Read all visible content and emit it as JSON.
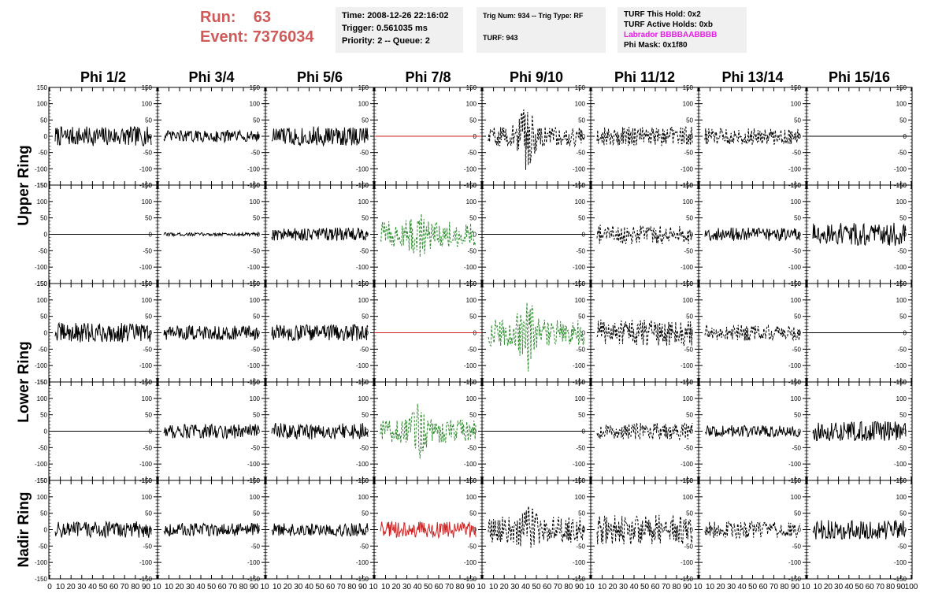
{
  "run_info": {
    "run_label": "Run:",
    "run_value": "63",
    "event_label": "Event:",
    "event_value": "7376034"
  },
  "info_box_1": {
    "time": "Time: 2008-12-26 22:16:02",
    "trigger": "Trigger: 0.561035 ms",
    "priority": "Priority: 2 -- Queue: 2"
  },
  "info_box_2": {
    "trig": "Trig Num: 934 -- Trig Type: RF",
    "turf": "TURF: 943"
  },
  "info_box_3": {
    "this_hold": "TURF This Hold: 0x2",
    "active_holds": "TURF Active Holds: 0xb",
    "labrador": "Labrador BBBBAABBBB",
    "phi_mask": "Phi Mask: 0x1f80"
  },
  "colors": {
    "run_text": "#cf5a5a",
    "labrador_text": "#e61ee6",
    "trace_black": "#000000",
    "trace_green": "#2e8b2e",
    "trace_red": "#cc2222",
    "info_box_bg": "#f0f0f0"
  },
  "chart_data": {
    "type": "line",
    "columns": [
      "Phi 1/2",
      "Phi 3/4",
      "Phi 5/6",
      "Phi 7/8",
      "Phi 9/10",
      "Phi 11/12",
      "Phi 13/14",
      "Phi 15/16"
    ],
    "ring_labels": [
      "Upper Ring",
      "Lower Ring",
      "Nadir Ring"
    ],
    "rows_per_ring": [
      2,
      2,
      1
    ],
    "xlim": [
      0,
      100
    ],
    "ylim": [
      -150,
      150
    ],
    "y_ticks": [
      -150,
      -100,
      -50,
      0,
      50,
      100,
      150
    ],
    "x_tick_labels": [
      "0",
      "10",
      "20",
      "30",
      "40",
      "50",
      "60",
      "70",
      "80",
      "90",
      "100"
    ],
    "panels": [
      {
        "row": 0,
        "col": 0,
        "style": "solid",
        "color": "black",
        "amp": 30,
        "burst": 0
      },
      {
        "row": 0,
        "col": 1,
        "style": "solid",
        "color": "black",
        "amp": 18,
        "burst": 0
      },
      {
        "row": 0,
        "col": 2,
        "style": "solid",
        "color": "black",
        "amp": 30,
        "burst": 0
      },
      {
        "row": 0,
        "col": 3,
        "style": "flat",
        "color": "red",
        "amp": 0,
        "burst": 0
      },
      {
        "row": 0,
        "col": 4,
        "style": "dashed",
        "color": "black",
        "amp": 30,
        "burst": 120
      },
      {
        "row": 0,
        "col": 5,
        "style": "dashed",
        "color": "black",
        "amp": 30,
        "burst": 0
      },
      {
        "row": 0,
        "col": 6,
        "style": "dashed",
        "color": "black",
        "amp": 25,
        "burst": 0
      },
      {
        "row": 0,
        "col": 7,
        "style": "flat",
        "color": "black",
        "amp": 0,
        "burst": 0
      },
      {
        "row": 1,
        "col": 0,
        "style": "flat",
        "color": "black",
        "amp": 0,
        "burst": 0
      },
      {
        "row": 1,
        "col": 1,
        "style": "solid",
        "color": "black",
        "amp": 5,
        "burst": 0
      },
      {
        "row": 1,
        "col": 2,
        "style": "solid",
        "color": "black",
        "amp": 20,
        "burst": 0
      },
      {
        "row": 1,
        "col": 3,
        "style": "dashed",
        "color": "green",
        "amp": 40,
        "burst": 85
      },
      {
        "row": 1,
        "col": 4,
        "style": "flat",
        "color": "black",
        "amp": 0,
        "burst": 0
      },
      {
        "row": 1,
        "col": 5,
        "style": "dashed",
        "color": "black",
        "amp": 30,
        "burst": 0
      },
      {
        "row": 1,
        "col": 6,
        "style": "solid",
        "color": "black",
        "amp": 20,
        "burst": 0
      },
      {
        "row": 1,
        "col": 7,
        "style": "solid",
        "color": "black",
        "amp": 35,
        "burst": 0
      },
      {
        "row": 2,
        "col": 0,
        "style": "solid",
        "color": "black",
        "amp": 30,
        "burst": 0
      },
      {
        "row": 2,
        "col": 1,
        "style": "solid",
        "color": "black",
        "amp": 22,
        "burst": 0
      },
      {
        "row": 2,
        "col": 2,
        "style": "solid",
        "color": "black",
        "amp": 25,
        "burst": 0
      },
      {
        "row": 2,
        "col": 3,
        "style": "flat",
        "color": "red",
        "amp": 0,
        "burst": 0
      },
      {
        "row": 2,
        "col": 4,
        "style": "dashed",
        "color": "green",
        "amp": 40,
        "burst": 130
      },
      {
        "row": 2,
        "col": 5,
        "style": "dashed",
        "color": "black",
        "amp": 40,
        "burst": 0
      },
      {
        "row": 2,
        "col": 6,
        "style": "dashed",
        "color": "black",
        "amp": 25,
        "burst": 0
      },
      {
        "row": 2,
        "col": 7,
        "style": "flat",
        "color": "black",
        "amp": 0,
        "burst": 0
      },
      {
        "row": 3,
        "col": 0,
        "style": "flat",
        "color": "black",
        "amp": 0,
        "burst": 0
      },
      {
        "row": 3,
        "col": 1,
        "style": "solid",
        "color": "black",
        "amp": 22,
        "burst": 0
      },
      {
        "row": 3,
        "col": 2,
        "style": "solid",
        "color": "black",
        "amp": 25,
        "burst": 0
      },
      {
        "row": 3,
        "col": 3,
        "style": "dashed",
        "color": "green",
        "amp": 35,
        "burst": 85
      },
      {
        "row": 3,
        "col": 4,
        "style": "flat",
        "color": "black",
        "amp": 0,
        "burst": 0
      },
      {
        "row": 3,
        "col": 5,
        "style": "dashed",
        "color": "black",
        "amp": 25,
        "burst": 0
      },
      {
        "row": 3,
        "col": 6,
        "style": "solid",
        "color": "black",
        "amp": 18,
        "burst": 0
      },
      {
        "row": 3,
        "col": 7,
        "style": "solid",
        "color": "black",
        "amp": 30,
        "burst": 0
      },
      {
        "row": 4,
        "col": 0,
        "style": "solid",
        "color": "black",
        "amp": 25,
        "burst": 0
      },
      {
        "row": 4,
        "col": 1,
        "style": "solid",
        "color": "black",
        "amp": 20,
        "burst": 0
      },
      {
        "row": 4,
        "col": 2,
        "style": "solid",
        "color": "black",
        "amp": 20,
        "burst": 0
      },
      {
        "row": 4,
        "col": 3,
        "style": "solid",
        "color": "red",
        "amp": 25,
        "burst": 0
      },
      {
        "row": 4,
        "col": 4,
        "style": "dashed",
        "color": "black",
        "amp": 40,
        "burst": 80
      },
      {
        "row": 4,
        "col": 5,
        "style": "dashed",
        "color": "black",
        "amp": 45,
        "burst": 0
      },
      {
        "row": 4,
        "col": 6,
        "style": "dashed",
        "color": "black",
        "amp": 25,
        "burst": 0
      },
      {
        "row": 4,
        "col": 7,
        "style": "solid",
        "color": "black",
        "amp": 30,
        "burst": 0
      }
    ]
  }
}
